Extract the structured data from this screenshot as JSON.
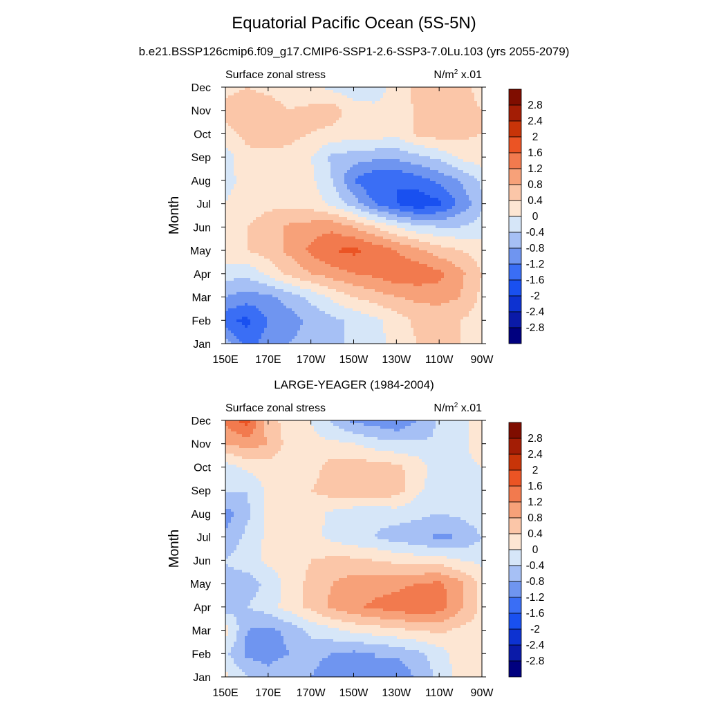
{
  "figure": {
    "title": "Equatorial Pacific Ocean (5S-5N)",
    "subtitle": "b.e21.BSSP126cmip6.f09_g17.CMIP6-SSP1-2.6-SSP3-7.0Lu.103 (yrs 2055-2079)",
    "second_title": "LARGE-YEAGER (1984-2004)"
  },
  "chart_data": [
    {
      "type": "heatmap",
      "title": "b.e21.BSSP126cmip6.f09_g17.CMIP6-SSP1-2.6-SSP3-7.0Lu.103 (yrs 2055-2079)",
      "left_label": "Surface zonal stress",
      "right_label": "N/m",
      "right_label_sup": "2",
      "right_label_tail": " x.01",
      "ylabel": "Month",
      "x_ticks": [
        "150E",
        "170E",
        "170W",
        "150W",
        "130W",
        "110W",
        "90W"
      ],
      "x_values_lon": [
        150,
        170,
        190,
        210,
        230,
        250,
        270
      ],
      "xlim_lon": [
        150,
        270
      ],
      "y_ticks": [
        "Jan",
        "Feb",
        "Mar",
        "Apr",
        "May",
        "Jun",
        "Jul",
        "Aug",
        "Sep",
        "Oct",
        "Nov",
        "Dec"
      ],
      "grid_x": [
        150,
        160,
        170,
        180,
        190,
        200,
        210,
        220,
        230,
        240,
        250,
        260,
        270
      ],
      "grid_months": [
        "Jan",
        "Feb",
        "Mar",
        "Apr",
        "May",
        "Jun",
        "Jul",
        "Aug",
        "Sep",
        "Oct",
        "Nov",
        "Dec"
      ],
      "z": [
        [
          -0.6,
          -1.4,
          -1.0,
          -0.8,
          -0.6,
          -0.4,
          -0.4,
          -0.2,
          0.2,
          0.4,
          0.4,
          0.4,
          0.2
        ],
        [
          -1.5,
          -1.7,
          -1.2,
          -1.0,
          -0.7,
          -0.5,
          -0.3,
          -0.1,
          0.2,
          0.5,
          0.4,
          0.4,
          0.2
        ],
        [
          -0.8,
          -1.0,
          -0.9,
          -0.6,
          -0.3,
          0.1,
          0.4,
          0.6,
          0.8,
          0.9,
          1.0,
          0.8,
          0.3
        ],
        [
          -0.2,
          -0.3,
          0.1,
          0.5,
          0.8,
          1.0,
          1.2,
          1.3,
          1.5,
          1.5,
          1.3,
          0.9,
          0.4
        ],
        [
          0.3,
          0.4,
          0.6,
          0.9,
          1.3,
          1.6,
          1.7,
          1.5,
          1.2,
          0.9,
          0.6,
          0.4,
          0.2
        ],
        [
          0.2,
          0.4,
          0.6,
          0.9,
          1.0,
          1.1,
          0.8,
          0.4,
          0.0,
          -0.3,
          -0.4,
          -0.4,
          -0.2
        ],
        [
          0.0,
          0.2,
          0.3,
          0.3,
          0.2,
          -0.1,
          -0.6,
          -1.2,
          -1.6,
          -1.9,
          -1.7,
          -1.1,
          -0.5
        ],
        [
          -0.1,
          0.1,
          0.2,
          0.3,
          0.1,
          -0.4,
          -1.2,
          -1.6,
          -1.6,
          -1.4,
          -1.1,
          -0.8,
          -0.3
        ],
        [
          -0.2,
          0.3,
          0.3,
          0.3,
          0.0,
          -0.5,
          -0.6,
          -0.7,
          -0.7,
          -0.5,
          -0.3,
          0.1,
          0.2
        ],
        [
          0.3,
          0.5,
          0.6,
          0.5,
          0.4,
          0.3,
          0.2,
          0.2,
          0.1,
          0.5,
          0.6,
          0.5,
          0.4
        ],
        [
          0.5,
          0.6,
          0.6,
          0.4,
          0.5,
          0.6,
          0.2,
          0.1,
          0.1,
          0.5,
          0.6,
          0.5,
          0.4
        ],
        [
          0.3,
          0.4,
          0.3,
          0.2,
          0.1,
          -0.1,
          -0.3,
          -0.2,
          0.2,
          0.5,
          0.6,
          0.5,
          0.3
        ]
      ],
      "colorbar_labels": [
        "2.8",
        "2.4",
        "2",
        "1.6",
        "1.2",
        "0.8",
        "0.4",
        "0",
        "-0.4",
        "-0.8",
        "-1.2",
        "-1.6",
        "-2",
        "-2.4",
        "-2.8"
      ],
      "levels": [
        -2.8,
        -2.4,
        -2.0,
        -1.6,
        -1.2,
        -0.8,
        -0.4,
        0.0,
        0.4,
        0.8,
        1.2,
        1.6,
        2.0,
        2.4,
        2.8
      ],
      "grid": false
    },
    {
      "type": "heatmap",
      "title": "LARGE-YEAGER (1984-2004)",
      "left_label": "Surface zonal stress",
      "right_label": "N/m",
      "right_label_sup": "2",
      "right_label_tail": " x.01",
      "ylabel": "Month",
      "x_ticks": [
        "150E",
        "170E",
        "170W",
        "150W",
        "130W",
        "110W",
        "90W"
      ],
      "x_values_lon": [
        150,
        170,
        190,
        210,
        230,
        250,
        270
      ],
      "xlim_lon": [
        150,
        270
      ],
      "y_ticks": [
        "Jan",
        "Feb",
        "Mar",
        "Apr",
        "May",
        "Jun",
        "Jul",
        "Aug",
        "Sep",
        "Oct",
        "Nov",
        "Dec"
      ],
      "grid_x": [
        150,
        160,
        170,
        180,
        190,
        200,
        210,
        220,
        230,
        240,
        250,
        260,
        270
      ],
      "grid_months": [
        "Jan",
        "Feb",
        "Mar",
        "Apr",
        "May",
        "Jun",
        "Jul",
        "Aug",
        "Sep",
        "Oct",
        "Nov",
        "Dec"
      ],
      "z": [
        [
          0.1,
          -0.4,
          -0.6,
          -0.4,
          -0.8,
          -1.2,
          -0.9,
          -0.8,
          -1.2,
          -0.7,
          -0.3,
          0.2,
          0.2
        ],
        [
          -0.3,
          -0.9,
          -1.0,
          -0.8,
          -0.6,
          -0.8,
          -0.9,
          -0.8,
          -0.7,
          -0.5,
          -0.2,
          0.2,
          0.2
        ],
        [
          0.2,
          -0.8,
          -0.9,
          -0.7,
          -0.3,
          -0.1,
          0.1,
          0.2,
          0.3,
          0.4,
          0.5,
          0.3,
          0.2
        ],
        [
          -0.6,
          -0.4,
          -0.2,
          0.2,
          0.5,
          0.9,
          1.1,
          1.3,
          1.4,
          1.6,
          1.4,
          0.9,
          0.3
        ],
        [
          -0.5,
          -0.6,
          -0.3,
          0.2,
          0.5,
          0.8,
          1.0,
          1.0,
          1.1,
          1.2,
          1.3,
          0.9,
          0.3
        ],
        [
          -0.4,
          -0.2,
          0.1,
          0.2,
          0.4,
          0.5,
          0.5,
          0.4,
          0.3,
          0.2,
          0.2,
          0.0,
          -0.1
        ],
        [
          -0.7,
          -0.3,
          0.1,
          0.2,
          0.1,
          -0.1,
          -0.3,
          -0.4,
          -0.6,
          -0.7,
          -0.9,
          -0.8,
          -0.4
        ],
        [
          -1.0,
          -0.5,
          0.1,
          0.2,
          0.2,
          -0.1,
          -0.3,
          -0.3,
          -0.2,
          -0.3,
          -0.4,
          -0.3,
          -0.1
        ],
        [
          -0.3,
          -0.4,
          0.1,
          0.2,
          0.4,
          0.6,
          0.8,
          0.7,
          0.6,
          0.1,
          -0.3,
          -0.2,
          0.0
        ],
        [
          -0.2,
          0.1,
          0.2,
          0.2,
          0.2,
          0.6,
          0.6,
          0.6,
          0.5,
          0.2,
          -0.2,
          -0.2,
          0.0
        ],
        [
          0.8,
          1.0,
          0.8,
          0.2,
          0.1,
          0.1,
          0.0,
          -0.2,
          -0.3,
          -0.3,
          -0.4,
          -0.2,
          0.4
        ],
        [
          1.3,
          1.8,
          0.6,
          0.2,
          0.0,
          -0.5,
          -0.9,
          -1.0,
          -1.2,
          -0.8,
          -0.3,
          -0.2,
          0.3
        ]
      ],
      "colorbar_labels": [
        "2.8",
        "2.4",
        "2",
        "1.6",
        "1.2",
        "0.8",
        "0.4",
        "0",
        "-0.4",
        "-0.8",
        "-1.2",
        "-1.6",
        "-2",
        "-2.4",
        "-2.8"
      ],
      "levels": [
        -2.8,
        -2.4,
        -2.0,
        -1.6,
        -1.2,
        -0.8,
        -0.4,
        0.0,
        0.4,
        0.8,
        1.2,
        1.6,
        2.0,
        2.4,
        2.8
      ],
      "grid": false
    }
  ],
  "colors": {
    "bins": [
      "#00007f",
      "#0a1aa8",
      "#0d32d1",
      "#1950f0",
      "#3a6ef5",
      "#6f95f0",
      "#a6c0f5",
      "#d6e6f8",
      "#fde6d3",
      "#fbc6a8",
      "#f7a179",
      "#f27a4e",
      "#eb5424",
      "#c83408",
      "#a31d05",
      "#7f0d00"
    ]
  }
}
